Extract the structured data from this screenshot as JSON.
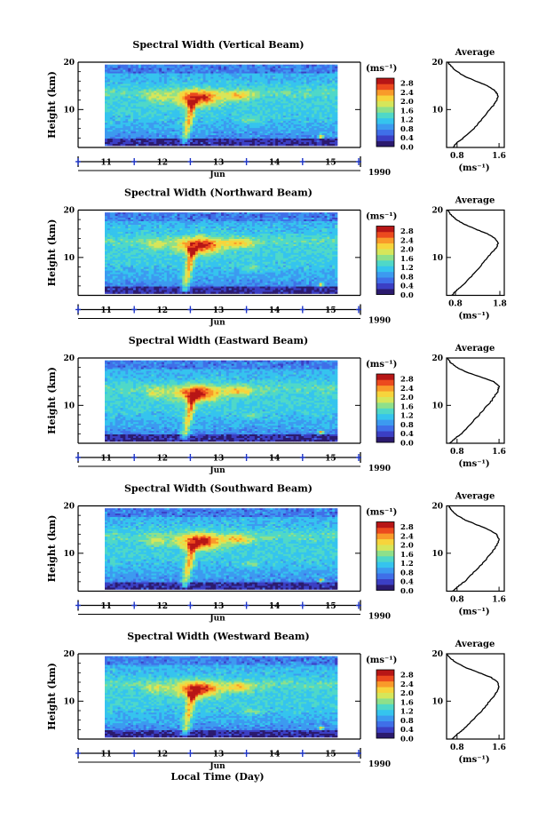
{
  "figure": {
    "xlabel": "Local Time (Day)",
    "month": "Jun",
    "year": "1990",
    "ylabel": "Height (km)",
    "colorbar_unit": "(ms⁻¹)",
    "avg_title": "Average",
    "avg_xlabel": "(ms⁻¹)"
  },
  "chart_data": [
    {
      "type": "heatmap",
      "title": "Spectral Width (Vertical Beam)",
      "x_ticks": [
        "11",
        "12",
        "13",
        "14",
        "15"
      ],
      "y_ticks": [
        "10",
        "20"
      ],
      "ylabel": "Height (km)",
      "xlabel": "Local Time (Day)",
      "ylim": [
        2,
        20
      ],
      "colorbar": {
        "label": "(ms⁻¹)",
        "ticks": [
          "0.0",
          "0.4",
          "0.8",
          "1.2",
          "1.6",
          "2.0",
          "2.4",
          "2.8"
        ],
        "range": [
          0.0,
          3.0
        ]
      }
    },
    {
      "type": "heatmap",
      "title": "Spectral Width (Northward Beam)",
      "x_ticks": [
        "11",
        "12",
        "13",
        "14",
        "15"
      ],
      "y_ticks": [
        "10",
        "20"
      ],
      "ylabel": "Height (km)",
      "xlabel": "Local Time (Day)",
      "ylim": [
        2,
        20
      ],
      "colorbar": {
        "label": "(ms⁻¹)",
        "ticks": [
          "0.0",
          "0.4",
          "0.8",
          "1.2",
          "1.6",
          "2.0",
          "2.4",
          "2.8"
        ],
        "range": [
          0.0,
          3.0
        ]
      }
    },
    {
      "type": "heatmap",
      "title": "Spectral Width (Eastward Beam)",
      "x_ticks": [
        "11",
        "12",
        "13",
        "14",
        "15"
      ],
      "y_ticks": [
        "10",
        "20"
      ],
      "ylabel": "Height (km)",
      "xlabel": "Local Time (Day)",
      "ylim": [
        2,
        20
      ],
      "colorbar": {
        "label": "(ms⁻¹)",
        "ticks": [
          "0.0",
          "0.4",
          "0.8",
          "1.2",
          "1.6",
          "2.0",
          "2.4",
          "2.8"
        ],
        "range": [
          0.0,
          3.0
        ]
      }
    },
    {
      "type": "heatmap",
      "title": "Spectral Width (Southward Beam)",
      "x_ticks": [
        "11",
        "12",
        "13",
        "14",
        "15"
      ],
      "y_ticks": [
        "10",
        "20"
      ],
      "ylabel": "Height (km)",
      "xlabel": "Local Time (Day)",
      "ylim": [
        2,
        20
      ],
      "colorbar": {
        "label": "(ms⁻¹)",
        "ticks": [
          "0.0",
          "0.4",
          "0.8",
          "1.2",
          "1.6",
          "2.0",
          "2.4",
          "2.8"
        ],
        "range": [
          0.0,
          3.0
        ]
      }
    },
    {
      "type": "heatmap",
      "title": "Spectral Width (Westward Beam)",
      "x_ticks": [
        "11",
        "12",
        "13",
        "14",
        "15"
      ],
      "y_ticks": [
        "10",
        "20"
      ],
      "ylabel": "Height (km)",
      "xlabel": "Local Time (Day)",
      "ylim": [
        2,
        20
      ],
      "colorbar": {
        "label": "(ms⁻¹)",
        "ticks": [
          "0.0",
          "0.4",
          "0.8",
          "1.2",
          "1.6",
          "2.0",
          "2.4",
          "2.8"
        ],
        "range": [
          0.0,
          3.0
        ]
      }
    }
  ],
  "average_profiles": [
    {
      "title": "Average",
      "xlabel": "(ms⁻¹)",
      "x_ticks": [
        "0.8",
        "1.6"
      ],
      "xlim": [
        0.6,
        1.7
      ],
      "height_km": [
        2,
        3,
        4,
        6,
        8,
        10,
        11,
        12,
        13,
        14,
        15,
        16,
        17,
        18,
        19,
        20
      ],
      "values": [
        0.72,
        0.8,
        0.92,
        1.12,
        1.28,
        1.42,
        1.5,
        1.56,
        1.58,
        1.52,
        1.38,
        1.16,
        0.95,
        0.8,
        0.7,
        0.62
      ]
    },
    {
      "title": "Average",
      "xlabel": "(ms⁻¹)",
      "x_ticks": [
        "0.8",
        "1.8"
      ],
      "xlim": [
        0.6,
        1.9
      ],
      "height_km": [
        2,
        3,
        4,
        6,
        8,
        10,
        11,
        12,
        13,
        14,
        15,
        16,
        17,
        18,
        19,
        20
      ],
      "values": [
        0.72,
        0.82,
        0.95,
        1.16,
        1.35,
        1.52,
        1.62,
        1.72,
        1.76,
        1.7,
        1.52,
        1.25,
        1.0,
        0.82,
        0.7,
        0.62
      ]
    },
    {
      "title": "Average",
      "xlabel": "(ms⁻¹)",
      "x_ticks": [
        "0.8",
        "1.6"
      ],
      "xlim": [
        0.6,
        1.7
      ],
      "height_km": [
        2,
        3,
        4,
        6,
        8,
        10,
        11,
        12,
        13,
        14,
        15,
        16,
        17,
        18,
        19,
        20
      ],
      "values": [
        0.66,
        0.76,
        0.88,
        1.05,
        1.22,
        1.38,
        1.46,
        1.52,
        1.58,
        1.6,
        1.5,
        1.25,
        0.98,
        0.8,
        0.68,
        0.62
      ]
    },
    {
      "title": "Average",
      "xlabel": "(ms⁻¹)",
      "x_ticks": [
        "0.8",
        "1.6"
      ],
      "xlim": [
        0.6,
        1.7
      ],
      "height_km": [
        2,
        3,
        4,
        6,
        8,
        10,
        11,
        12,
        13,
        14,
        15,
        16,
        17,
        18,
        19,
        20
      ],
      "values": [
        0.72,
        0.82,
        0.94,
        1.12,
        1.3,
        1.45,
        1.52,
        1.57,
        1.6,
        1.55,
        1.4,
        1.18,
        0.96,
        0.8,
        0.7,
        0.64
      ]
    },
    {
      "title": "Average",
      "xlabel": "(ms⁻¹)",
      "x_ticks": [
        "0.8",
        "1.6"
      ],
      "xlim": [
        0.6,
        1.7
      ],
      "height_km": [
        2,
        3,
        4,
        6,
        8,
        10,
        11,
        12,
        13,
        14,
        15,
        16,
        17,
        18,
        19,
        20
      ],
      "values": [
        0.7,
        0.8,
        0.92,
        1.1,
        1.28,
        1.42,
        1.5,
        1.56,
        1.6,
        1.58,
        1.45,
        1.22,
        0.98,
        0.8,
        0.68,
        0.6
      ]
    }
  ],
  "colors": {
    "colorscale": [
      "#2b1a6e",
      "#3b3fc4",
      "#3f6fe8",
      "#3c9af0",
      "#35c4ee",
      "#4fd8c8",
      "#8ee08a",
      "#d6e65a",
      "#f7d43c",
      "#f99a2a",
      "#ec4a1e",
      "#b71616"
    ],
    "tick_marker": "#1f36c9"
  }
}
